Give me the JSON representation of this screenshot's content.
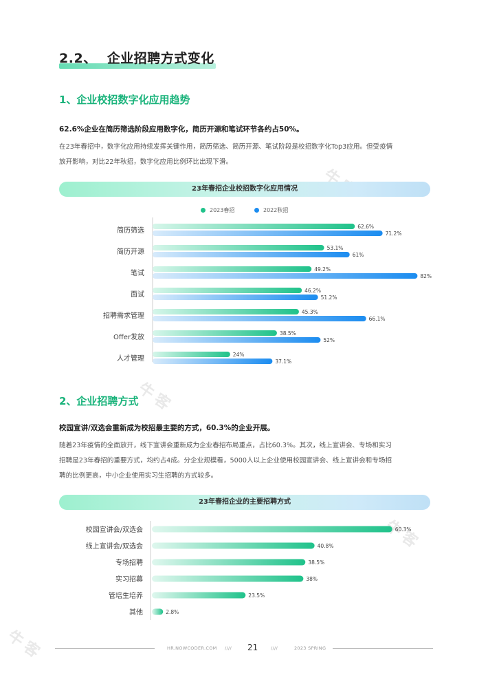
{
  "section": {
    "number": "2.2、",
    "title": "企业招聘方式变化"
  },
  "part1": {
    "heading": "1、企业校招数字化应用趋势",
    "lead": "62.6%企业在简历筛选阶段应用数字化，简历开源和笔试环节各约占50%。",
    "para_line1": "在23年春招中，数字化应用持续发挥关键作用，简历筛选、简历开源、笔试阶段是校招数字化Top3应用。但受疫情",
    "para_line2": "放开影响，对比22年秋招，数字化应用比例环比出现下滑。"
  },
  "part2": {
    "heading": "2、企业招聘方式",
    "lead": "校园宣讲/双选会重新成为校招最主要的方式，60.3%的企业开展。",
    "para_line1": "随着23年疫情的全面放开，线下宣讲会重新成为企业春招布局重点，占比60.3%。其次，线上宣讲会、专场和实习",
    "para_line2": "招聘是23年春招的重要方式，均约占4成。分企业规模看，5000人以上企业使用校园宣讲会、线上宣讲会和专场招",
    "para_line3": "聘的比例更高，中小企业使用实习生招聘的方式较多。"
  },
  "chart_data": [
    {
      "type": "bar",
      "orientation": "horizontal",
      "title": "23年春招企业校招数字化应用情况",
      "categories": [
        "简历筛选",
        "简历开源",
        "笔试",
        "面试",
        "招聘需求管理",
        "Offer发放",
        "人才管理"
      ],
      "series": [
        {
          "name": "2023春招",
          "color": "#1fc28a",
          "values": [
            62.6,
            53.1,
            49.2,
            46.2,
            45.3,
            38.5,
            24
          ],
          "labels": [
            "62.6%",
            "53.1%",
            "49.2%",
            "46.2%",
            "45.3%",
            "38.5%",
            "24%"
          ]
        },
        {
          "name": "2022秋招",
          "color": "#1b8cf0",
          "values": [
            71.2,
            61,
            82,
            51.2,
            66.1,
            52,
            37.1
          ],
          "labels": [
            "71.2%",
            "61%",
            "82%",
            "51.2%",
            "66.1%",
            "52%",
            "37.1%"
          ]
        }
      ],
      "legend_position": "top"
    },
    {
      "type": "bar",
      "orientation": "horizontal",
      "title": "23年春招企业的主要招聘方式",
      "categories": [
        "校园宣讲会/双选会",
        "线上宣讲会/双选会",
        "专场招聘",
        "实习招募",
        "管培生培养",
        "其他"
      ],
      "series": [
        {
          "color": "#1fc28a",
          "values": [
            60.3,
            40.8,
            38.5,
            38,
            23.5,
            2.8
          ],
          "labels": [
            "60.3%",
            "40.8%",
            "38.5%",
            "38%",
            "23.5%",
            "2.8%"
          ]
        }
      ]
    }
  ],
  "footer": {
    "site": "HR.NOWCODER.COM",
    "sep_left": "////",
    "page": "21",
    "sep_right": "////",
    "season": "2023 SPRING"
  }
}
